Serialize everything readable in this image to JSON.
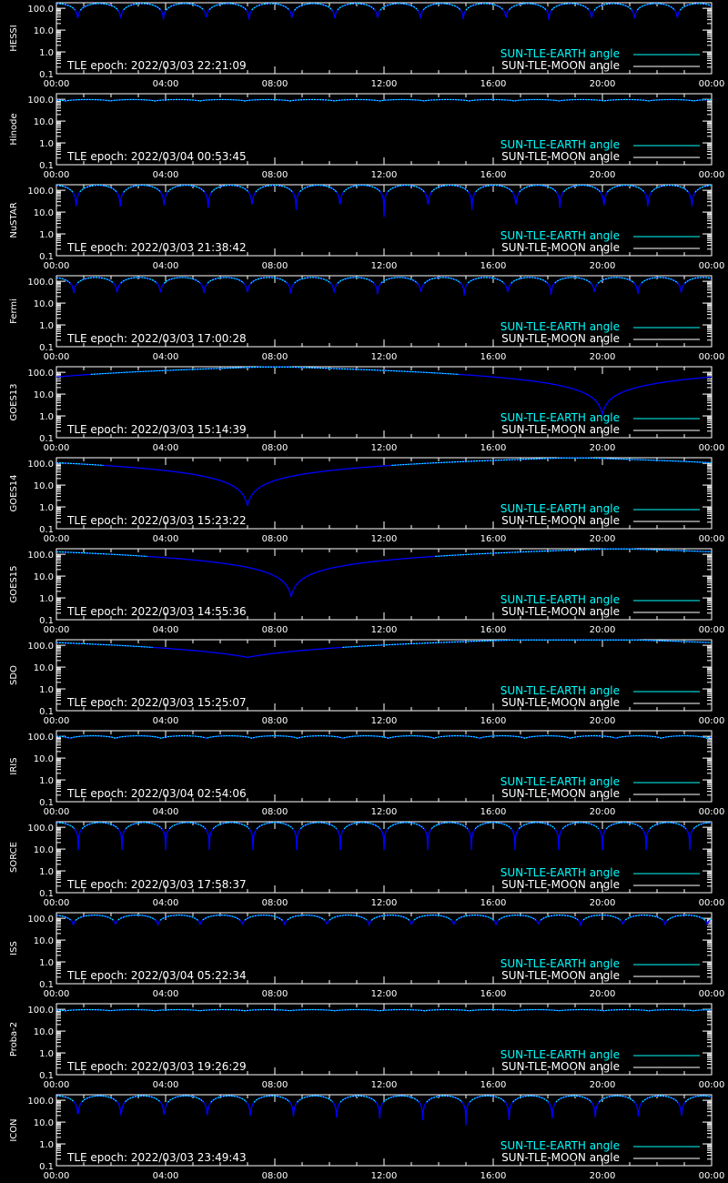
{
  "figure": {
    "background": "#000000",
    "axis_color": "#ffffff",
    "earth_color": "#00ffff",
    "low_color": "#0000ff",
    "moon_color": "#ffffff"
  },
  "legend": {
    "earth_label": "SUN-TLE-EARTH angle",
    "moon_label": "SUN-TLE-MOON angle"
  },
  "chart_data": [
    {
      "type": "line",
      "ylabel": "HESSI",
      "epoch": "TLE epoch: 2022/03/03 22:21:09",
      "x_ticks": [
        "00:00",
        "04:00",
        "08:00",
        "12:00",
        "16:00",
        "20:00",
        "00:00"
      ],
      "y_ticks": [
        "100.0",
        "10.0",
        "1.0",
        "0.1"
      ],
      "ylim": [
        0.1,
        180
      ],
      "y_scale": "log",
      "x_range_hours": [
        0,
        24
      ],
      "pattern": "orbital",
      "orbits": 15.3,
      "max_deg": 165,
      "min_deg": 25,
      "phase": 0.0
    },
    {
      "type": "line",
      "ylabel": "Hinode",
      "epoch": "TLE epoch: 2022/03/04 00:53:45",
      "x_ticks": [
        "00:00",
        "04:00",
        "08:00",
        "12:00",
        "16:00",
        "20:00",
        "00:00"
      ],
      "y_ticks": [
        "100.0",
        "10.0",
        "1.0",
        "0.1"
      ],
      "ylim": [
        0.1,
        180
      ],
      "y_scale": "log",
      "x_range_hours": [
        0,
        24
      ],
      "pattern": "orbital",
      "orbits": 14.6,
      "max_deg": 97,
      "min_deg": 82,
      "phase": 0.3
    },
    {
      "type": "line",
      "ylabel": "NuSTAR",
      "epoch": "TLE epoch: 2022/03/03 21:38:42",
      "x_ticks": [
        "00:00",
        "04:00",
        "08:00",
        "12:00",
        "16:00",
        "20:00",
        "00:00"
      ],
      "y_ticks": [
        "100.0",
        "10.0",
        "1.0",
        "0.1"
      ],
      "ylim": [
        0.1,
        180
      ],
      "y_scale": "log",
      "x_range_hours": [
        0,
        24
      ],
      "pattern": "orbital",
      "orbits": 14.9,
      "max_deg": 170,
      "min_deg": 6,
      "phase": 0.05
    },
    {
      "type": "line",
      "ylabel": "Fermi",
      "epoch": "TLE epoch: 2022/03/03 17:00:28",
      "x_ticks": [
        "00:00",
        "04:00",
        "08:00",
        "12:00",
        "16:00",
        "20:00",
        "00:00"
      ],
      "y_ticks": [
        "100.0",
        "10.0",
        "1.0",
        "0.1"
      ],
      "ylim": [
        0.1,
        180
      ],
      "y_scale": "log",
      "x_range_hours": [
        0,
        24
      ],
      "pattern": "orbital",
      "orbits": 15.1,
      "max_deg": 150,
      "min_deg": 20,
      "phase": 0.1
    },
    {
      "type": "line",
      "ylabel": "GOES13",
      "epoch": "TLE epoch: 2022/03/03 15:14:39",
      "x_ticks": [
        "00:00",
        "04:00",
        "08:00",
        "12:00",
        "16:00",
        "20:00",
        "00:00"
      ],
      "y_ticks": [
        "100.0",
        "10.0",
        "1.0",
        "0.1"
      ],
      "ylim": [
        0.1,
        180
      ],
      "y_scale": "log",
      "x_range_hours": [
        0,
        24
      ],
      "pattern": "geo",
      "min_hour": 20.0,
      "min_deg": 1.2
    },
    {
      "type": "line",
      "ylabel": "GOES14",
      "epoch": "TLE epoch: 2022/03/03 15:23:22",
      "x_ticks": [
        "00:00",
        "04:00",
        "08:00",
        "12:00",
        "16:00",
        "20:00",
        "00:00"
      ],
      "y_ticks": [
        "100.0",
        "10.0",
        "1.0",
        "0.1"
      ],
      "ylim": [
        0.1,
        180
      ],
      "y_scale": "log",
      "x_range_hours": [
        0,
        24
      ],
      "pattern": "geo",
      "min_hour": 7.0,
      "min_deg": 1.1
    },
    {
      "type": "line",
      "ylabel": "GOES15",
      "epoch": "TLE epoch: 2022/03/03 14:55:36",
      "x_ticks": [
        "00:00",
        "04:00",
        "08:00",
        "12:00",
        "16:00",
        "20:00",
        "00:00"
      ],
      "y_ticks": [
        "100.0",
        "10.0",
        "1.0",
        "0.1"
      ],
      "ylim": [
        0.1,
        180
      ],
      "y_scale": "log",
      "x_range_hours": [
        0,
        24
      ],
      "pattern": "geo",
      "min_hour": 8.6,
      "min_deg": 1.1
    },
    {
      "type": "line",
      "ylabel": "SDO",
      "epoch": "TLE epoch: 2022/03/03 15:25:07",
      "x_ticks": [
        "00:00",
        "04:00",
        "08:00",
        "12:00",
        "16:00",
        "20:00",
        "00:00"
      ],
      "y_ticks": [
        "100.0",
        "10.0",
        "1.0",
        "0.1"
      ],
      "ylim": [
        0.1,
        180
      ],
      "y_scale": "log",
      "x_range_hours": [
        0,
        24
      ],
      "pattern": "geo",
      "min_hour": 7.0,
      "min_deg": 28
    },
    {
      "type": "line",
      "ylabel": "IRIS",
      "epoch": "TLE epoch: 2022/03/04 02:54:06",
      "x_ticks": [
        "00:00",
        "04:00",
        "08:00",
        "12:00",
        "16:00",
        "20:00",
        "00:00"
      ],
      "y_ticks": [
        "100.0",
        "10.0",
        "1.0",
        "0.1"
      ],
      "ylim": [
        0.1,
        180
      ],
      "y_scale": "log",
      "x_range_hours": [
        0,
        24
      ],
      "pattern": "orbital",
      "orbits": 14.4,
      "max_deg": 105,
      "min_deg": 78,
      "phase": 0.2
    },
    {
      "type": "line",
      "ylabel": "SORCE",
      "epoch": "TLE epoch: 2022/03/03 17:58:37",
      "x_ticks": [
        "00:00",
        "04:00",
        "08:00",
        "12:00",
        "16:00",
        "20:00",
        "00:00"
      ],
      "y_ticks": [
        "100.0",
        "10.0",
        "1.0",
        "0.1"
      ],
      "ylim": [
        0.1,
        180
      ],
      "y_scale": "log",
      "x_range_hours": [
        0,
        24
      ],
      "pattern": "orbital",
      "orbits": 15.0,
      "max_deg": 165,
      "min_deg": 9,
      "phase": 0.0
    },
    {
      "type": "line",
      "ylabel": "ISS",
      "epoch": "TLE epoch: 2022/03/04 05:22:34",
      "x_ticks": [
        "00:00",
        "04:00",
        "08:00",
        "12:00",
        "16:00",
        "20:00",
        "00:00"
      ],
      "y_ticks": [
        "100.0",
        "10.0",
        "1.0",
        "0.1"
      ],
      "ylim": [
        0.1,
        180
      ],
      "y_scale": "log",
      "x_range_hours": [
        0,
        24
      ],
      "pattern": "orbital",
      "orbits": 15.5,
      "max_deg": 140,
      "min_deg": 45,
      "phase": 0.1
    },
    {
      "type": "line",
      "ylabel": "Proba-2",
      "epoch": "TLE epoch: 2022/03/03 19:26:29",
      "x_ticks": [
        "00:00",
        "04:00",
        "08:00",
        "12:00",
        "16:00",
        "20:00",
        "00:00"
      ],
      "y_ticks": [
        "100.0",
        "10.0",
        "1.0",
        "0.1"
      ],
      "ylim": [
        0.1,
        180
      ],
      "y_scale": "log",
      "x_range_hours": [
        0,
        24
      ],
      "pattern": "orbital",
      "orbits": 14.6,
      "max_deg": 96,
      "min_deg": 84,
      "phase": 0.3
    },
    {
      "type": "line",
      "ylabel": "ICON",
      "epoch": "TLE epoch: 2022/03/03 23:49:43",
      "x_ticks": [
        "00:00",
        "04:00",
        "08:00",
        "12:00",
        "16:00",
        "20:00",
        "00:00"
      ],
      "y_ticks": [
        "100.0",
        "10.0",
        "1.0",
        "0.1"
      ],
      "ylim": [
        0.1,
        180
      ],
      "y_scale": "log",
      "x_range_hours": [
        0,
        24
      ],
      "pattern": "orbital",
      "orbits": 15.2,
      "max_deg": 160,
      "min_deg": 7,
      "phase": 0.0
    }
  ]
}
